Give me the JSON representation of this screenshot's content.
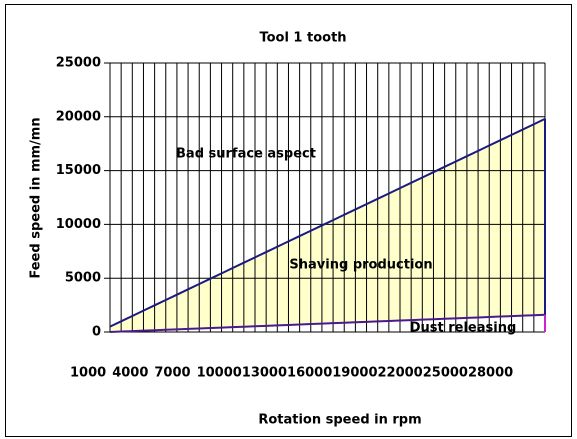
{
  "chart_data": {
    "type": "area",
    "title": "Tool 1  tooth",
    "x_label": "Rotation speed in rpm",
    "y_label": "Feed speed in mm/mn",
    "annotations": [
      "Bad surface aspect",
      "Shaving production",
      "Dust releasing"
    ],
    "categories": [
      "1000",
      null,
      null,
      "4000",
      null,
      null,
      "7000",
      null,
      null,
      "10000",
      null,
      null,
      "13000",
      null,
      null,
      "16000",
      null,
      null,
      "19000",
      null,
      null,
      "22000",
      null,
      null,
      "25000",
      null,
      null,
      "28000",
      null,
      null,
      null,
      null,
      null,
      null,
      null,
      null,
      null,
      null,
      null,
      null
    ],
    "series": [
      {
        "color": "#1a1a80",
        "values": [
          500,
          995,
          1490,
          1985,
          2480,
          2975,
          3470,
          3965,
          4460,
          4955,
          5450,
          5945,
          6440,
          6935,
          7430,
          7925,
          8420,
          8915,
          9410,
          9905,
          10400,
          10895,
          11390,
          11885,
          12380,
          12875,
          13370,
          13865,
          14360,
          14855,
          15350,
          15845,
          16340,
          16835,
          17330,
          17825,
          18320,
          18815,
          19310,
          19805
        ]
      },
      {
        "color": "#4b1a8c",
        "values": [
          0,
          41,
          82,
          123,
          164,
          205,
          246,
          287,
          328,
          369,
          410,
          451,
          492,
          533,
          574,
          615,
          656,
          697,
          738,
          779,
          820,
          861,
          902,
          943,
          984,
          1025,
          1066,
          1107,
          1148,
          1189,
          1230,
          1271,
          1312,
          1353,
          1394,
          1435,
          1476,
          1517,
          1558,
          1599
        ]
      }
    ],
    "fill_color": "#ffffcc",
    "ylim": [
      0,
      25000
    ],
    "yticks": [
      0,
      5000,
      10000,
      15000,
      20000,
      25000
    ],
    "grid": true
  }
}
